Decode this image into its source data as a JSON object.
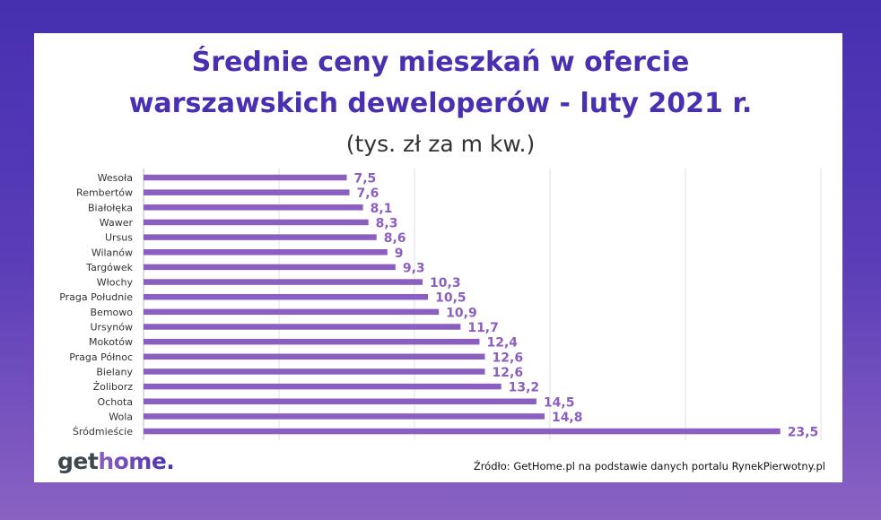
{
  "header": {
    "title_line1": "Średnie ceny mieszkań w ofercie",
    "title_line2": "warszawskich deweloperów - luty 2021 r.",
    "subtitle": "(tys. zł za m kw.)"
  },
  "logo": {
    "part1": "get",
    "part2": "home."
  },
  "source": "Źródło: GetHome.pl na podstawie danych portalu RynekPierwotny.pl",
  "colors": {
    "bar": "#8a5fc0",
    "value_label": "#8a5fc0",
    "title": "#4a2fb0",
    "background": "#4a32b0"
  },
  "chart_data": {
    "type": "bar",
    "orientation": "horizontal",
    "categories": [
      "Wesoła",
      "Rembertów",
      "Białołęka",
      "Wawer",
      "Ursus",
      "Wilanów",
      "Targówek",
      "Włochy",
      "Praga Południe",
      "Bemowo",
      "Ursynów",
      "Mokotów",
      "Praga Północ",
      "Bielany",
      "Żoliborz",
      "Ochota",
      "Wola",
      "Śródmieście"
    ],
    "values": [
      7.5,
      7.6,
      8.1,
      8.3,
      8.6,
      9,
      9.3,
      10.3,
      10.5,
      10.9,
      11.7,
      12.4,
      12.6,
      12.6,
      13.2,
      14.5,
      14.8,
      23.5
    ],
    "value_labels": [
      "7,5",
      "7,6",
      "8,1",
      "8,3",
      "8,6",
      "9",
      "9,3",
      "10,3",
      "10,5",
      "10,9",
      "11,7",
      "12,4",
      "12,6",
      "12,6",
      "13,2",
      "14,5",
      "14,8",
      "23,5"
    ],
    "xlim": [
      0,
      25
    ],
    "grid": true,
    "title": "Średnie ceny mieszkań w ofercie warszawskich deweloperów - luty 2021 r.",
    "xlabel": "",
    "ylabel": ""
  }
}
